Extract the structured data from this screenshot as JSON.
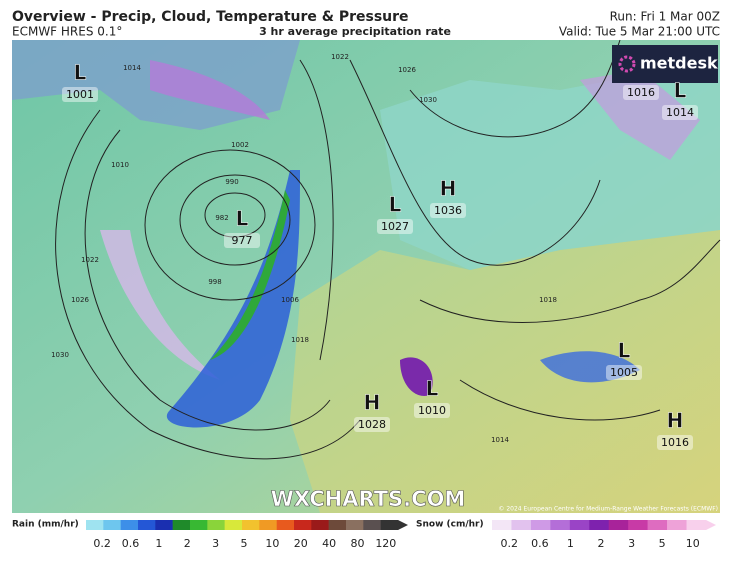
{
  "header": {
    "title": "Overview - Precip, Cloud, Temperature & Pressure",
    "model": "ECMWF HRES 0.1°",
    "subtitle": "3 hr average precipitation rate",
    "run": "Run: Fri 1 Mar 00Z",
    "valid": "Valid: Tue 5 Mar 21:00 UTC"
  },
  "logo": "metdesk",
  "watermark": "WXCHARTS.COM",
  "copyright": "© 2024 European Centre for Medium-Range Weather Forecasts (ECMWF)",
  "pressure_centers": [
    {
      "symbol": "L",
      "value": "1001"
    },
    {
      "symbol": "L",
      "value": "977"
    },
    {
      "symbol": "L",
      "value": "1027"
    },
    {
      "symbol": "H",
      "value": "1036"
    },
    {
      "symbol": "L",
      "value": "1014"
    },
    {
      "symbol": "H",
      "value": "1028"
    },
    {
      "symbol": "L",
      "value": "1010"
    },
    {
      "symbol": "L",
      "value": "1005"
    },
    {
      "symbol": "H",
      "value": "1016"
    }
  ],
  "pressure_boxes": [
    "1016"
  ],
  "isobar_labels": [
    "1022",
    "1026",
    "1030",
    "1014",
    "1010",
    "1002",
    "990",
    "982",
    "998",
    "1006",
    "1018",
    "1026",
    "1030",
    "1022",
    "1018",
    "1014"
  ],
  "legend": {
    "rain": {
      "label": "Rain (mm/hr)",
      "ticks": [
        "0.2",
        "0.6",
        "1",
        "2",
        "3",
        "5",
        "10",
        "20",
        "40",
        "80",
        "120"
      ],
      "colors": [
        "#9fe3f0",
        "#6ec6ee",
        "#3d8fe8",
        "#2457d6",
        "#1a2fb0",
        "#1f8a2a",
        "#38b833",
        "#8ad43a",
        "#d8e83a",
        "#f2c22e",
        "#f09a24",
        "#e85a1e",
        "#c8281c",
        "#9a1a1a",
        "#6d4a3a",
        "#8a7060",
        "#5a5050",
        "#333333"
      ]
    },
    "snow": {
      "label": "Snow (cm/hr)",
      "ticks": [
        "0.2",
        "0.6",
        "1",
        "2",
        "3",
        "5",
        "10"
      ],
      "colors": [
        "#f3e6f6",
        "#e2c2ee",
        "#cf9ae6",
        "#b46ed8",
        "#9a44c6",
        "#7e22ae",
        "#a8239a",
        "#c83aa6",
        "#de6cc0",
        "#eea2d8",
        "#f8d0ec"
      ]
    }
  }
}
